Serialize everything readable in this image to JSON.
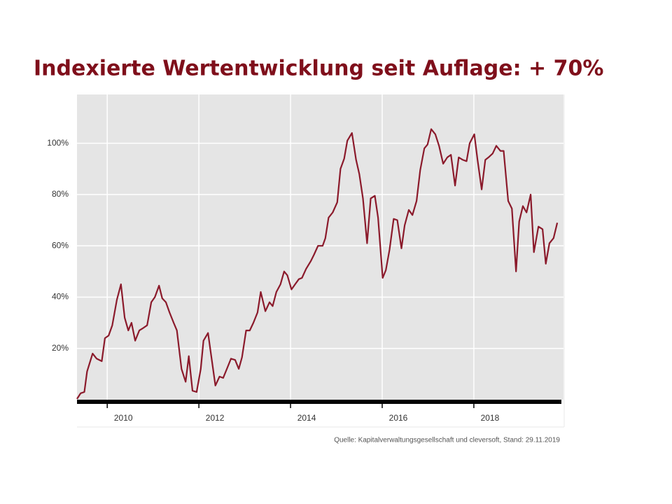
{
  "chart_data": {
    "type": "line",
    "title": "Indexierte Wertentwicklung seit Auflage: + 70%",
    "source": "Quelle: Kapitalverwaltungsgesellschaft und cleversoft, Stand: 29.11.2019",
    "color": "#8b1a2b",
    "grid": true,
    "xlim": [
      2009.34,
      2019.88
    ],
    "xticks": [
      2010,
      2012,
      2014,
      2016,
      2018
    ],
    "ylim": [
      0,
      119
    ],
    "yticks": [
      {
        "value": 20,
        "label": "20%"
      },
      {
        "value": 40,
        "label": "40%"
      },
      {
        "value": 60,
        "label": "60%"
      },
      {
        "value": 80,
        "label": "80%"
      },
      {
        "value": 100,
        "label": "100%"
      }
    ],
    "x": [
      2009.34,
      2009.42,
      2009.5,
      2009.56,
      2009.68,
      2009.77,
      2009.88,
      2009.95,
      2010.03,
      2010.11,
      2010.21,
      2010.3,
      2010.38,
      2010.46,
      2010.53,
      2010.61,
      2010.7,
      2010.79,
      2010.87,
      2010.96,
      2011.04,
      2011.13,
      2011.2,
      2011.28,
      2011.36,
      2011.45,
      2011.52,
      2011.62,
      2011.71,
      2011.78,
      2011.86,
      2011.95,
      2012.04,
      2012.1,
      2012.2,
      2012.27,
      2012.36,
      2012.45,
      2012.53,
      2012.61,
      2012.7,
      2012.79,
      2012.87,
      2012.94,
      2013.03,
      2013.11,
      2013.19,
      2013.28,
      2013.35,
      2013.45,
      2013.54,
      2013.61,
      2013.69,
      2013.78,
      2013.86,
      2013.93,
      2014.02,
      2014.1,
      2014.18,
      2014.25,
      2014.34,
      2014.44,
      2014.51,
      2014.6,
      2014.7,
      2014.76,
      2014.83,
      2014.92,
      2015.02,
      2015.09,
      2015.17,
      2015.24,
      2015.34,
      2015.43,
      2015.5,
      2015.58,
      2015.67,
      2015.75,
      2015.84,
      2015.91,
      2016.01,
      2016.08,
      2016.16,
      2016.25,
      2016.33,
      2016.42,
      2016.49,
      2016.58,
      2016.66,
      2016.75,
      2016.83,
      2016.92,
      2016.99,
      2017.07,
      2017.16,
      2017.24,
      2017.33,
      2017.42,
      2017.5,
      2017.59,
      2017.67,
      2017.76,
      2017.84,
      2017.91,
      2018.01,
      2018.08,
      2018.17,
      2018.25,
      2018.32,
      2018.41,
      2018.49,
      2018.58,
      2018.65,
      2018.75,
      2018.83,
      2018.92,
      2018.99,
      2019.07,
      2019.15,
      2019.24,
      2019.31,
      2019.41,
      2019.5,
      2019.57,
      2019.65,
      2019.74,
      2019.82
    ],
    "values": [
      0.3,
      2.5,
      3,
      11,
      18,
      16,
      15,
      24,
      25,
      29,
      39,
      45,
      32,
      27,
      30,
      23,
      27,
      28,
      29,
      38,
      40,
      44.5,
      39.5,
      38,
      34,
      30,
      27,
      12,
      7,
      17,
      3.5,
      3,
      12,
      23,
      26,
      17,
      5.5,
      9,
      8.5,
      12,
      16,
      15.5,
      12,
      16.5,
      27,
      27,
      30,
      34,
      42,
      34.5,
      38,
      36.5,
      42,
      45,
      50,
      48.5,
      43,
      45,
      47,
      47.5,
      51,
      54,
      56.5,
      60,
      60,
      63,
      71,
      73,
      77,
      90,
      94,
      101,
      104,
      93.5,
      88,
      78.5,
      61,
      78.5,
      79.5,
      71,
      47.5,
      50.5,
      58.5,
      70.5,
      70,
      59,
      68,
      74,
      72,
      77.5,
      89.5,
      98,
      99.5,
      105.5,
      103.5,
      99,
      92,
      94.5,
      95.5,
      83.5,
      94.5,
      93.5,
      93,
      100,
      103.5,
      93.5,
      82,
      93.5,
      94.5,
      96,
      99,
      97,
      97,
      77.5,
      74.5,
      50,
      69.5,
      75.5,
      73,
      80,
      57.5,
      67.5,
      66.5,
      53,
      61,
      63,
      69
    ]
  }
}
